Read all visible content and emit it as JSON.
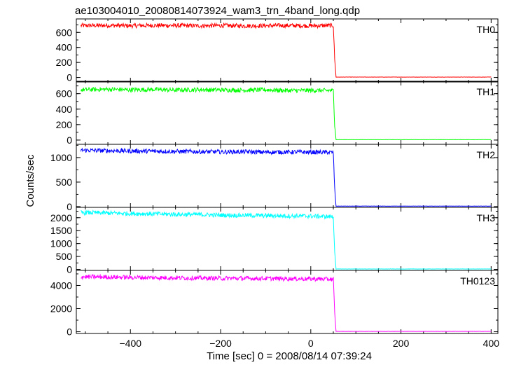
{
  "chart_data": {
    "type": "line",
    "title": "ae103004010_20080814073924_wam3_trn_4band_long.qdp",
    "xlabel": "Time [sec] 0 = 2008/08/14 07:39:24",
    "ylabel": "Counts/sec",
    "xlim": [
      -520,
      415
    ],
    "x_ticks": [
      -400,
      -200,
      0,
      200,
      400
    ],
    "x_tick_labels": [
      "−400",
      "−200",
      "0",
      "200",
      "400"
    ],
    "drop_time": 54,
    "panels": [
      {
        "name": "TH0",
        "color": "#ff0000",
        "ylim": [
          -60,
          780
        ],
        "y_ticks": [
          0,
          200,
          400,
          600
        ],
        "points": [
          [
            -510,
            690
          ],
          [
            -450,
            694
          ],
          [
            -400,
            689
          ],
          [
            -350,
            694
          ],
          [
            -300,
            692
          ],
          [
            -250,
            688
          ],
          [
            -200,
            692
          ],
          [
            -150,
            688
          ],
          [
            -100,
            690
          ],
          [
            -50,
            692
          ],
          [
            0,
            689
          ],
          [
            50,
            692
          ],
          [
            53,
            250
          ],
          [
            56,
            5
          ],
          [
            100,
            5
          ],
          [
            200,
            5
          ],
          [
            300,
            5
          ],
          [
            400,
            5
          ]
        ]
      },
      {
        "name": "TH1",
        "color": "#00ff00",
        "ylim": [
          -55,
          760
        ],
        "y_ticks": [
          0,
          200,
          400,
          600
        ],
        "points": [
          [
            -510,
            650
          ],
          [
            -450,
            656
          ],
          [
            -400,
            650
          ],
          [
            -350,
            654
          ],
          [
            -300,
            646
          ],
          [
            -250,
            652
          ],
          [
            -200,
            648
          ],
          [
            -150,
            645
          ],
          [
            -100,
            650
          ],
          [
            -50,
            640
          ],
          [
            0,
            642
          ],
          [
            50,
            640
          ],
          [
            53,
            200
          ],
          [
            56,
            5
          ],
          [
            100,
            5
          ],
          [
            200,
            5
          ],
          [
            300,
            5
          ],
          [
            400,
            5
          ]
        ]
      },
      {
        "name": "TH2",
        "color": "#0000ff",
        "ylim": [
          -15,
          1270
        ],
        "y_ticks": [
          0,
          500,
          1000
        ],
        "points": [
          [
            -510,
            1150
          ],
          [
            -450,
            1140
          ],
          [
            -400,
            1135
          ],
          [
            -350,
            1130
          ],
          [
            -300,
            1125
          ],
          [
            -250,
            1120
          ],
          [
            -200,
            1115
          ],
          [
            -150,
            1118
          ],
          [
            -100,
            1110
          ],
          [
            -50,
            1112
          ],
          [
            0,
            1110
          ],
          [
            50,
            1105
          ],
          [
            53,
            350
          ],
          [
            56,
            10
          ],
          [
            100,
            10
          ],
          [
            200,
            10
          ],
          [
            300,
            10
          ],
          [
            400,
            10
          ]
        ]
      },
      {
        "name": "TH3",
        "color": "#00ffff",
        "ylim": [
          -40,
          2400
        ],
        "y_ticks": [
          0,
          500,
          1000,
          1500,
          2000
        ],
        "y_tick_labels": [
          "0",
          "500",
          "1000",
          "1500",
          "2000"
        ],
        "points": [
          [
            -510,
            2200
          ],
          [
            -450,
            2180
          ],
          [
            -400,
            2160
          ],
          [
            -350,
            2150
          ],
          [
            -300,
            2130
          ],
          [
            -250,
            2120
          ],
          [
            -200,
            2100
          ],
          [
            -150,
            2090
          ],
          [
            -100,
            2080
          ],
          [
            -50,
            2070
          ],
          [
            0,
            2060
          ],
          [
            50,
            2040
          ],
          [
            53,
            700
          ],
          [
            56,
            15
          ],
          [
            100,
            15
          ],
          [
            200,
            15
          ],
          [
            300,
            15
          ],
          [
            400,
            15
          ]
        ]
      },
      {
        "name": "TH0123",
        "color": "#ff00ff",
        "ylim": [
          -150,
          5300
        ],
        "y_ticks": [
          0,
          2000,
          4000
        ],
        "points": [
          [
            -510,
            4750
          ],
          [
            -450,
            4730
          ],
          [
            -400,
            4700
          ],
          [
            -350,
            4680
          ],
          [
            -300,
            4660
          ],
          [
            -250,
            4640
          ],
          [
            -200,
            4620
          ],
          [
            -150,
            4610
          ],
          [
            -100,
            4600
          ],
          [
            -50,
            4590
          ],
          [
            0,
            4570
          ],
          [
            50,
            4540
          ],
          [
            53,
            1600
          ],
          [
            56,
            30
          ],
          [
            100,
            30
          ],
          [
            200,
            30
          ],
          [
            300,
            30
          ],
          [
            400,
            30
          ]
        ]
      }
    ]
  }
}
